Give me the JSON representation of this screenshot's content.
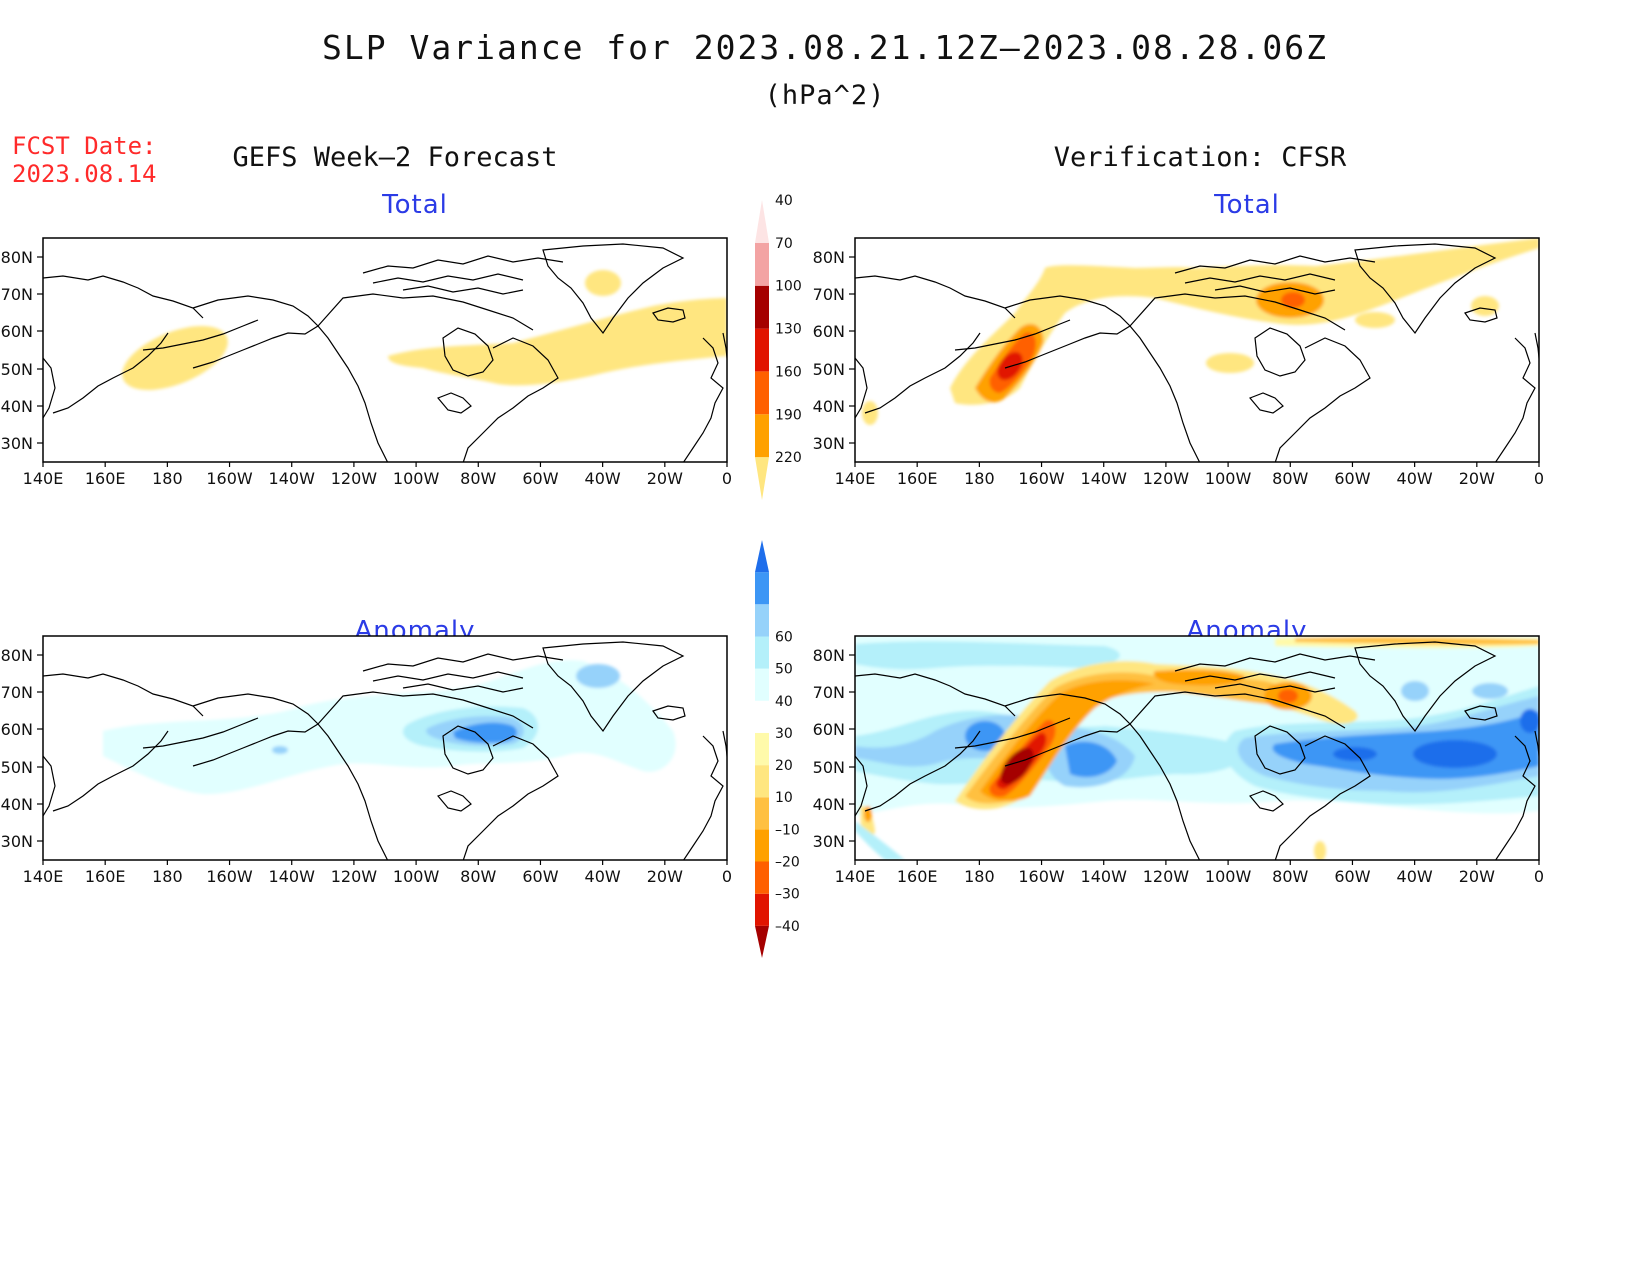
{
  "header": {
    "title": "SLP Variance for 2023.08.21.12Z–2023.08.28.06Z",
    "units": "(hPa^2)",
    "fcst_label": "FCST Date:",
    "fcst_date": "2023.08.14"
  },
  "columns": {
    "left_title": "GEFS Week–2 Forecast",
    "right_title": "Verification: CFSR"
  },
  "panels": {
    "fc_total": "Total",
    "vf_total": "Total",
    "fc_anom": "Anomaly",
    "vf_anom": "Anomaly"
  },
  "axes": {
    "lat_labels": [
      "80N",
      "70N",
      "60N",
      "50N",
      "40N",
      "30N"
    ],
    "lon_labels": [
      "140E",
      "160E",
      "180",
      "160W",
      "140W",
      "120W",
      "100W",
      "80W",
      "60W",
      "40W",
      "20W",
      "0"
    ]
  },
  "colorbars": {
    "total": {
      "labels": [
        "40",
        "70",
        "100",
        "130",
        "160",
        "190",
        "220"
      ],
      "colors": [
        "#ffe680",
        "#ffa100",
        "#ff6000",
        "#e11400",
        "#a50000",
        "#f3a3a3",
        "#fde4e4"
      ]
    },
    "anomaly": {
      "labels": [
        "60",
        "50",
        "40",
        "30",
        "20",
        "10",
        "–10",
        "–20",
        "–30",
        "–40"
      ],
      "colors": [
        "#a50000",
        "#e11400",
        "#ff6000",
        "#ffa100",
        "#ffc041",
        "#ffe680",
        "#fffaaa",
        "#ffffff",
        "#e1ffff",
        "#b4f0fa",
        "#96d2fa",
        "#3c96f5",
        "#1e6eeb"
      ]
    }
  }
}
